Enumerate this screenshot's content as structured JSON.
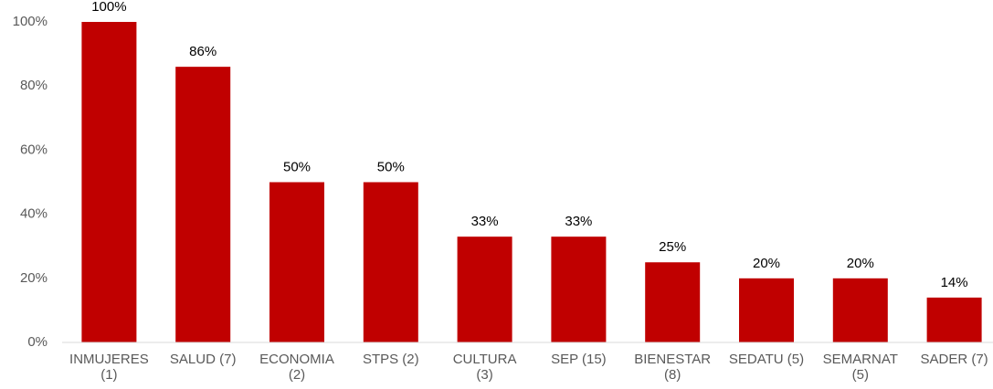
{
  "chart_data": {
    "type": "bar",
    "categories": [
      "INMUJERES (1)",
      "SALUD (7)",
      "ECONOMIA (2)",
      "STPS (2)",
      "CULTURA (3)",
      "SEP (15)",
      "BIENESTAR (8)",
      "SEDATU (5)",
      "SEMARNAT (5)",
      "SADER (7)"
    ],
    "values": [
      100,
      86,
      50,
      50,
      33,
      33,
      25,
      20,
      20,
      14
    ],
    "value_labels": [
      "100%",
      "86%",
      "50%",
      "50%",
      "33%",
      "33%",
      "25%",
      "20%",
      "20%",
      "14%"
    ],
    "color": "#c00000",
    "ylim": [
      0,
      100
    ],
    "yticks": [
      {
        "value": 0,
        "label": "0%"
      },
      {
        "value": 20,
        "label": "20%"
      },
      {
        "value": 40,
        "label": "40%"
      },
      {
        "value": 60,
        "label": "60%"
      },
      {
        "value": 80,
        "label": "80%"
      },
      {
        "value": 100,
        "label": "100%"
      }
    ],
    "grid": false
  }
}
